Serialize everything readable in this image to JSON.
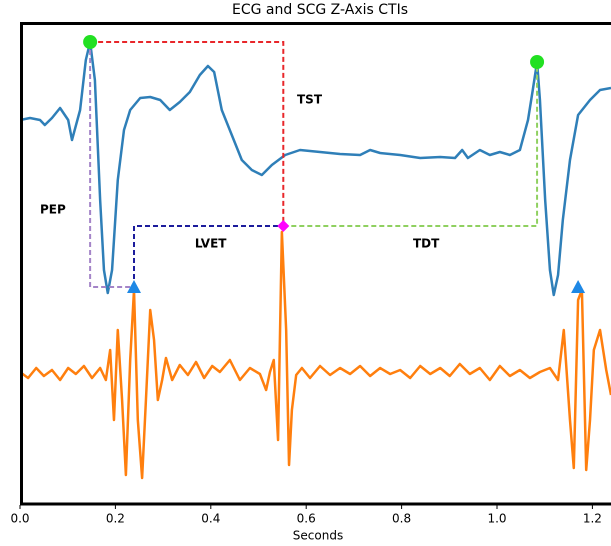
{
  "chart_data": {
    "type": "line",
    "title": "ECG and SCG Z-Axis CTIs",
    "x_label": "Seconds",
    "xlim": [
      0,
      1.239
    ],
    "ylim": [
      0,
      483
    ],
    "xticks": [
      {
        "value": 0,
        "label": "0.0"
      },
      0.2,
      0.4,
      0.6,
      0.8,
      {
        "value": 1,
        "label": "1.0"
      },
      1.2
    ],
    "series": [
      {
        "color": "#2f7fb8",
        "x": [
          0,
          0.021,
          0.042,
          0.052,
          0.067,
          0.084,
          0.101,
          0.109,
          0.126,
          0.138,
          0.147,
          0.157,
          0.168,
          0.176,
          0.184,
          0.193,
          0.205,
          0.218,
          0.231,
          0.252,
          0.273,
          0.294,
          0.314,
          0.335,
          0.356,
          0.377,
          0.394,
          0.407,
          0.423,
          0.444,
          0.465,
          0.486,
          0.507,
          0.528,
          0.556,
          0.587,
          0.629,
          0.671,
          0.713,
          0.734,
          0.755,
          0.797,
          0.839,
          0.881,
          0.912,
          0.927,
          0.939,
          0.964,
          0.985,
          1.006,
          1.027,
          1.048,
          1.065,
          1.075,
          1.084,
          1.09,
          1.101,
          1.111,
          1.119,
          1.128,
          1.138,
          1.153,
          1.17,
          1.195,
          1.216,
          1.239
        ],
        "values": [
          385,
          387,
          385,
          380,
          387,
          397,
          385,
          365,
          395,
          445,
          463,
          425,
          305,
          235,
          212,
          235,
          325,
          375,
          395,
          407,
          408,
          405,
          395,
          403,
          413,
          430,
          439,
          433,
          395,
          370,
          345,
          335,
          330,
          340,
          350,
          355,
          353,
          351,
          350,
          355,
          352,
          350,
          347,
          348,
          347,
          355,
          347,
          355,
          350,
          353,
          350,
          355,
          385,
          415,
          443,
          405,
          305,
          235,
          210,
          230,
          285,
          345,
          390,
          405,
          415,
          417
        ]
      },
      {
        "color": "#ff7f0e",
        "x": [
          0,
          0.017,
          0.034,
          0.05,
          0.067,
          0.084,
          0.101,
          0.117,
          0.134,
          0.151,
          0.168,
          0.18,
          0.189,
          0.197,
          0.205,
          0.214,
          0.222,
          0.231,
          0.239,
          0.247,
          0.256,
          0.264,
          0.273,
          0.281,
          0.289,
          0.298,
          0.306,
          0.319,
          0.335,
          0.352,
          0.369,
          0.386,
          0.403,
          0.419,
          0.44,
          0.461,
          0.482,
          0.503,
          0.516,
          0.524,
          0.532,
          0.541,
          0.549,
          0.558,
          0.564,
          0.57,
          0.579,
          0.591,
          0.608,
          0.629,
          0.65,
          0.671,
          0.692,
          0.713,
          0.734,
          0.755,
          0.776,
          0.797,
          0.818,
          0.839,
          0.86,
          0.881,
          0.901,
          0.922,
          0.943,
          0.964,
          0.985,
          1.006,
          1.027,
          1.048,
          1.069,
          1.09,
          1.111,
          1.128,
          1.14,
          1.153,
          1.161,
          1.17,
          1.178,
          1.187,
          1.195,
          1.203,
          1.216,
          1.229,
          1.239
        ],
        "values": [
          133,
          127,
          137,
          129,
          135,
          125,
          137,
          131,
          139,
          127,
          137,
          125,
          155,
          85,
          175,
          105,
          30,
          145,
          215,
          85,
          27,
          105,
          195,
          165,
          105,
          125,
          147,
          125,
          140,
          130,
          143,
          127,
          139,
          133,
          145,
          125,
          137,
          131,
          115,
          133,
          145,
          65,
          273,
          175,
          40,
          95,
          130,
          137,
          127,
          139,
          130,
          137,
          131,
          139,
          129,
          137,
          131,
          135,
          127,
          139,
          131,
          137,
          129,
          141,
          131,
          137,
          125,
          139,
          129,
          135,
          127,
          133,
          137,
          125,
          175,
          85,
          37,
          205,
          215,
          35,
          85,
          155,
          175,
          135,
          110
        ]
      }
    ],
    "r_peaks": {
      "color": "#22e022",
      "x": [
        0.147,
        1.084
      ],
      "y": [
        463,
        443
      ]
    },
    "ao_points": {
      "color": "#1e88e5",
      "x": [
        0.239,
        1.17
      ],
      "y": [
        218,
        218
      ]
    },
    "ac_point": {
      "color": "#ff00ff",
      "x": [
        0.552
      ],
      "y": [
        279
      ]
    },
    "intervals": [
      {
        "label": "TST",
        "color": "#e8262a"
      },
      {
        "label": "PEP",
        "color": "#a484c8"
      },
      {
        "label": "LVET",
        "color": "#1c1c9c"
      },
      {
        "label": "TDT",
        "color": "#8fd060"
      }
    ]
  }
}
